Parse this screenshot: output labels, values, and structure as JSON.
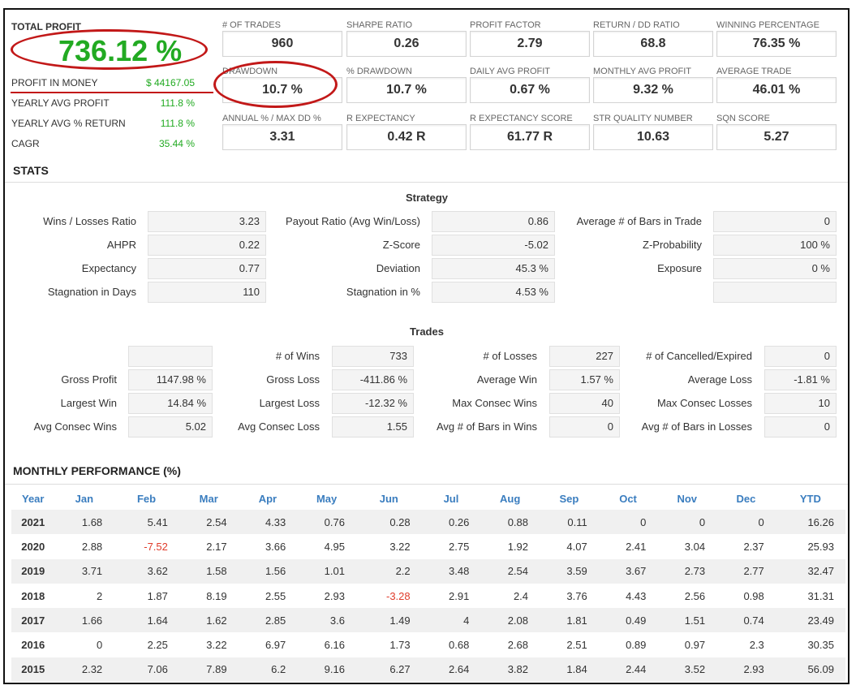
{
  "summary": {
    "total_profit_label": "TOTAL PROFIT",
    "total_profit_value": "736.12 %",
    "rows": [
      {
        "label": "PROFIT IN MONEY",
        "value": "$ 44167.05"
      },
      {
        "label": "YEARLY AVG PROFIT",
        "value": "111.8 %"
      },
      {
        "label": "YEARLY AVG % RETURN",
        "value": "111.8 %"
      },
      {
        "label": "CAGR",
        "value": "35.44 %"
      }
    ]
  },
  "kpis": [
    {
      "label": "# OF TRADES",
      "value": "960"
    },
    {
      "label": "SHARPE RATIO",
      "value": "0.26"
    },
    {
      "label": "PROFIT FACTOR",
      "value": "2.79"
    },
    {
      "label": "RETURN / DD RATIO",
      "value": "68.8"
    },
    {
      "label": "WINNING PERCENTAGE",
      "value": "76.35 %"
    },
    {
      "label": "DRAWDOWN",
      "value": "10.7 %"
    },
    {
      "label": "% DRAWDOWN",
      "value": "10.7 %"
    },
    {
      "label": "DAILY AVG PROFIT",
      "value": "0.67 %"
    },
    {
      "label": "MONTHLY AVG PROFIT",
      "value": "9.32 %"
    },
    {
      "label": "AVERAGE TRADE",
      "value": "46.01 %"
    },
    {
      "label": "ANNUAL % / MAX DD %",
      "value": "3.31"
    },
    {
      "label": "R EXPECTANCY",
      "value": "0.42 R"
    },
    {
      "label": "R EXPECTANCY SCORE",
      "value": "61.77 R"
    },
    {
      "label": "STR QUALITY NUMBER",
      "value": "10.63"
    },
    {
      "label": "SQN SCORE",
      "value": "5.27"
    }
  ],
  "stats_title": "STATS",
  "strategy": {
    "title": "Strategy",
    "rows": [
      [
        {
          "label": "Wins / Losses Ratio",
          "value": "3.23"
        },
        {
          "label": "Payout Ratio (Avg Win/Loss)",
          "value": "0.86"
        },
        {
          "label": "Average # of Bars in Trade",
          "value": "0"
        }
      ],
      [
        {
          "label": "AHPR",
          "value": "0.22"
        },
        {
          "label": "Z-Score",
          "value": "-5.02"
        },
        {
          "label": "Z-Probability",
          "value": "100 %"
        }
      ],
      [
        {
          "label": "Expectancy",
          "value": "0.77"
        },
        {
          "label": "Deviation",
          "value": "45.3 %"
        },
        {
          "label": "Exposure",
          "value": "0 %"
        }
      ],
      [
        {
          "label": "Stagnation in Days",
          "value": "110"
        },
        {
          "label": "Stagnation in %",
          "value": "4.53 %"
        },
        {
          "label": "",
          "value": ""
        }
      ]
    ]
  },
  "trades": {
    "title": "Trades",
    "rows": [
      [
        {
          "label": "",
          "value": ""
        },
        {
          "label": "# of Wins",
          "value": "733"
        },
        {
          "label": "# of Losses",
          "value": "227"
        },
        {
          "label": "# of Cancelled/Expired",
          "value": "0"
        }
      ],
      [
        {
          "label": "Gross Profit",
          "value": "1147.98 %"
        },
        {
          "label": "Gross Loss",
          "value": "-411.86 %"
        },
        {
          "label": "Average Win",
          "value": "1.57 %"
        },
        {
          "label": "Average Loss",
          "value": "-1.81 %"
        }
      ],
      [
        {
          "label": "Largest Win",
          "value": "14.84 %"
        },
        {
          "label": "Largest Loss",
          "value": "-12.32 %"
        },
        {
          "label": "Max Consec Wins",
          "value": "40"
        },
        {
          "label": "Max Consec Losses",
          "value": "10"
        }
      ],
      [
        {
          "label": "Avg Consec Wins",
          "value": "5.02"
        },
        {
          "label": "Avg Consec Loss",
          "value": "1.55"
        },
        {
          "label": "Avg # of Bars in Wins",
          "value": "0"
        },
        {
          "label": "Avg # of Bars in Losses",
          "value": "0"
        }
      ]
    ]
  },
  "monthly": {
    "title": "MONTHLY PERFORMANCE (%)",
    "headers": [
      "Year",
      "Jan",
      "Feb",
      "Mar",
      "Apr",
      "May",
      "Jun",
      "Jul",
      "Aug",
      "Sep",
      "Oct",
      "Nov",
      "Dec",
      "YTD"
    ],
    "rows": [
      [
        "2021",
        "1.68",
        "5.41",
        "2.54",
        "4.33",
        "0.76",
        "0.28",
        "0.26",
        "0.88",
        "0.11",
        "0",
        "0",
        "0",
        "16.26"
      ],
      [
        "2020",
        "2.88",
        "-7.52",
        "2.17",
        "3.66",
        "4.95",
        "3.22",
        "2.75",
        "1.92",
        "4.07",
        "2.41",
        "3.04",
        "2.37",
        "25.93"
      ],
      [
        "2019",
        "3.71",
        "3.62",
        "1.58",
        "1.56",
        "1.01",
        "2.2",
        "3.48",
        "2.54",
        "3.59",
        "3.67",
        "2.73",
        "2.77",
        "32.47"
      ],
      [
        "2018",
        "2",
        "1.87",
        "8.19",
        "2.55",
        "2.93",
        "-3.28",
        "2.91",
        "2.4",
        "3.76",
        "4.43",
        "2.56",
        "0.98",
        "31.31"
      ],
      [
        "2017",
        "1.66",
        "1.64",
        "1.62",
        "2.85",
        "3.6",
        "1.49",
        "4",
        "2.08",
        "1.81",
        "0.49",
        "1.51",
        "0.74",
        "23.49"
      ],
      [
        "2016",
        "0",
        "2.25",
        "3.22",
        "6.97",
        "6.16",
        "1.73",
        "0.68",
        "2.68",
        "2.51",
        "0.89",
        "0.97",
        "2.3",
        "30.35"
      ],
      [
        "2015",
        "2.32",
        "7.06",
        "7.89",
        "6.2",
        "9.16",
        "6.27",
        "2.64",
        "3.82",
        "1.84",
        "2.44",
        "3.52",
        "2.93",
        "56.09"
      ]
    ]
  },
  "colors": {
    "profit_green": "#22aa22",
    "negative_red": "#e03b2a",
    "header_blue": "#3a7dbf",
    "annotation_red": "#c21818"
  }
}
